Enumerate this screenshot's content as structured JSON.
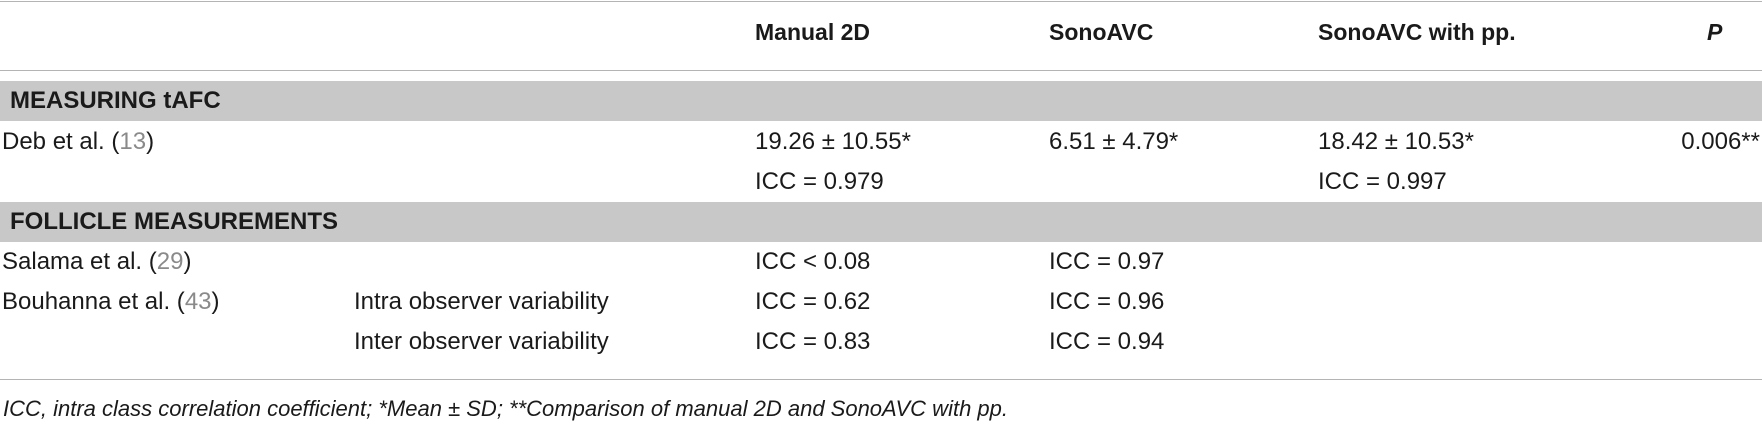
{
  "columns": {
    "manual": "Manual 2D",
    "sonoavc": "SonoAVC",
    "sonoavc_pp": "SonoAVC with pp.",
    "p": "P"
  },
  "sections": [
    {
      "title": "MEASURING tAFC",
      "rows": [
        {
          "study": "Deb et al.",
          "ref": "13",
          "manual": [
            "19.26 ± 10.55*",
            "ICC = 0.979"
          ],
          "sonoavc": [
            "6.51 ± 4.79*"
          ],
          "sonoavc_pp": [
            "18.42 ± 10.53*",
            "ICC = 0.997"
          ],
          "p": "0.006**"
        }
      ]
    },
    {
      "title": "FOLLICLE MEASUREMENTS",
      "rows": [
        {
          "study": "Salama et al.",
          "ref": "29",
          "variability": "",
          "manual": "ICC < 0.08",
          "sonoavc": "ICC = 0.97"
        },
        {
          "study": "Bouhanna et al.",
          "ref": "43",
          "variability": "Intra observer variability",
          "manual": "ICC = 0.62",
          "sonoavc": "ICC = 0.96"
        },
        {
          "study": "",
          "ref": "",
          "variability": "Inter observer variability",
          "manual": "ICC = 0.83",
          "sonoavc": "ICC = 0.94"
        }
      ]
    }
  ],
  "footnote": "ICC, intra class correlation coefficient; *Mean ± SD; **Comparison of manual 2D and SonoAVC with pp."
}
